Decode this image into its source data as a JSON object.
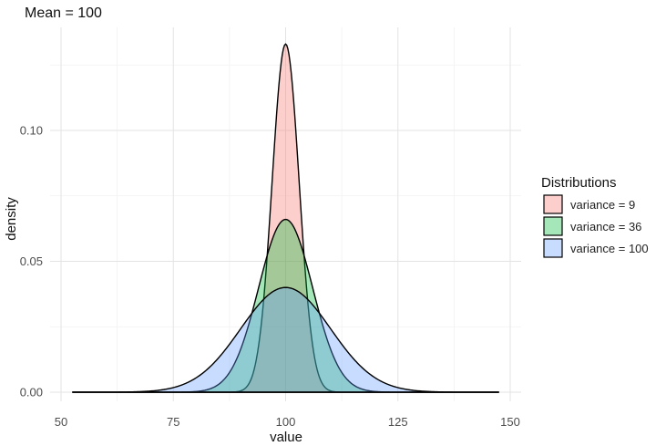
{
  "chart_data": {
    "type": "area",
    "title": "Mean = 100",
    "xlabel": "value",
    "ylabel": "density",
    "xlim": [
      50,
      150
    ],
    "ylim": [
      0,
      0.135
    ],
    "x_ticks": [
      "50",
      "75",
      "100",
      "125",
      "150"
    ],
    "y_ticks": [
      "0.00",
      "0.05",
      "0.10"
    ],
    "grid": true,
    "legend": {
      "title": "Distributions",
      "position": "right"
    },
    "x_range": [
      52.5,
      147.5
    ],
    "series": [
      {
        "name": "variance = 9",
        "mean": 100,
        "variance": 9,
        "peak": 0.133,
        "color": "#f8766d"
      },
      {
        "name": "variance = 36",
        "mean": 100,
        "variance": 36,
        "peak": 0.066,
        "color": "#00ba38"
      },
      {
        "name": "variance = 100",
        "mean": 100,
        "variance": 100,
        "peak": 0.04,
        "color": "#619cff"
      }
    ]
  }
}
